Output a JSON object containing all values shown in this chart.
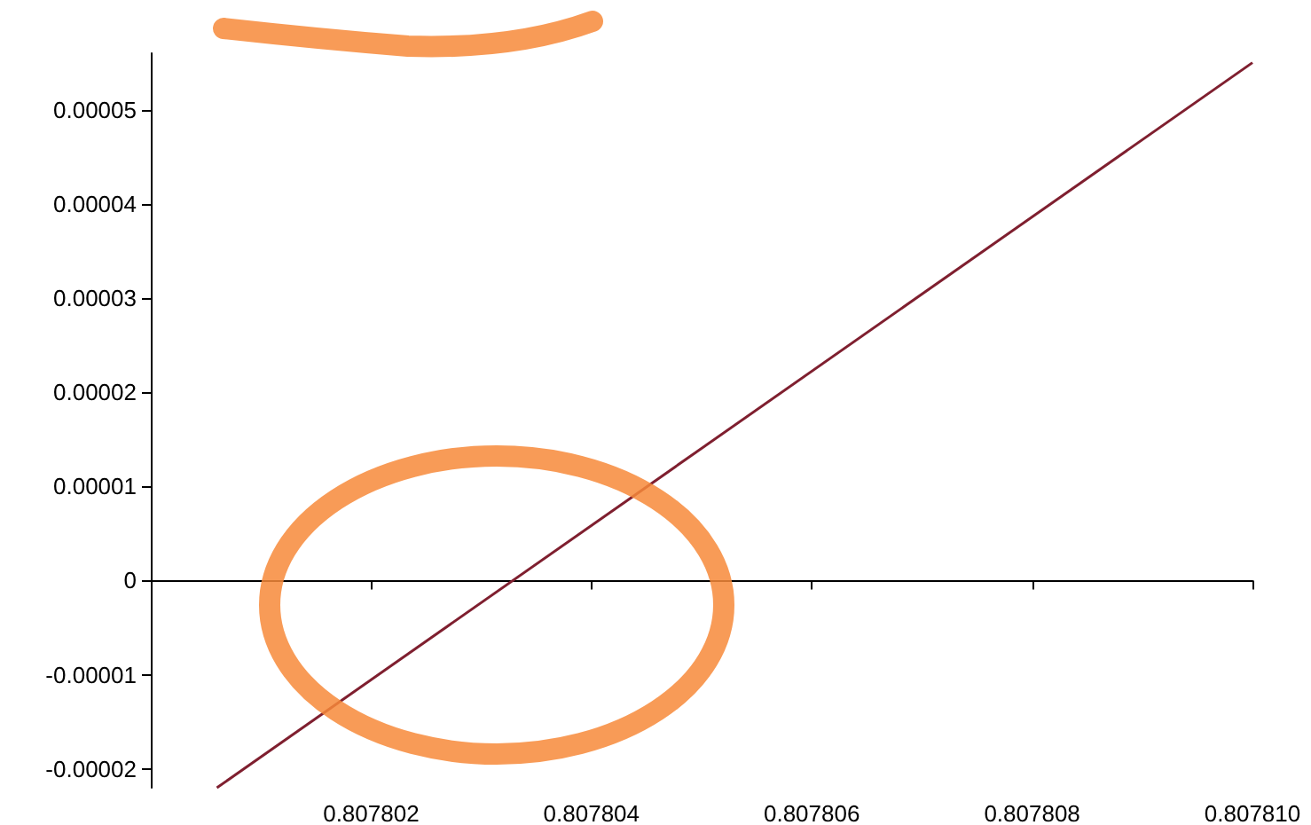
{
  "chart_data": {
    "type": "line",
    "series": [
      {
        "color": "#7f1f2f",
        "x": [
          0.8078006,
          0.80781
        ],
        "values": [
          -2.2e-05,
          5.5e-05
        ]
      }
    ],
    "xlim": [
      0.8078,
      0.80781
    ],
    "xticks": [
      0.807802,
      0.807804,
      0.807806,
      0.807808,
      {
        "value": 0.80781,
        "label": "0.807810"
      }
    ],
    "ylim": [
      -2.2e-05,
      5.6e-05
    ],
    "yticks": [
      {
        "value": -2e-05,
        "label": "-0.00002"
      },
      {
        "value": -1e-05,
        "label": "-0.00001"
      },
      0,
      {
        "value": 1e-05,
        "label": "0.00001"
      },
      {
        "value": 2e-05,
        "label": "0.00002"
      },
      {
        "value": 3e-05,
        "label": "0.00003"
      },
      {
        "value": 4e-05,
        "label": "0.00004"
      },
      {
        "value": 5e-05,
        "label": "0.00005"
      }
    ],
    "marker": "none",
    "line_style": "solid"
  }
}
